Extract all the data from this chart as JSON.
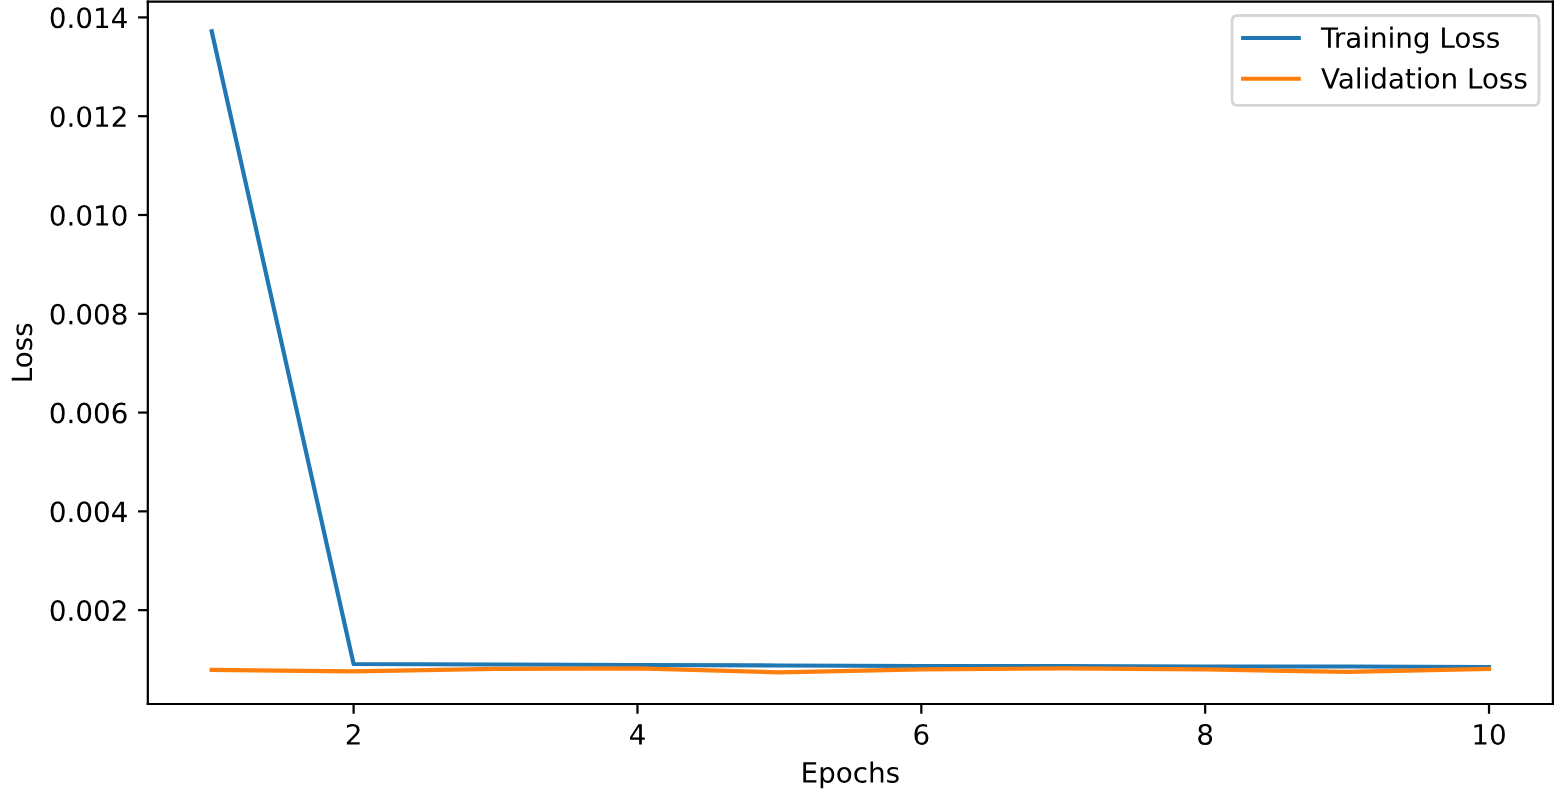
{
  "chart_data": {
    "type": "line",
    "xlabel": "Epochs",
    "ylabel": "Loss",
    "x": [
      1,
      2,
      3,
      4,
      5,
      6,
      7,
      8,
      9,
      10
    ],
    "series": [
      {
        "name": "Training Loss",
        "color": "#1f77b4",
        "values": [
          0.01372,
          0.00091,
          0.0009,
          0.00089,
          0.00088,
          0.00087,
          0.00087,
          0.00086,
          0.00086,
          0.00085
        ]
      },
      {
        "name": "Validation Loss",
        "color": "#ff7f0e",
        "values": [
          0.00079,
          0.00076,
          0.00081,
          0.00082,
          0.00074,
          0.0008,
          0.00082,
          0.0008,
          0.00075,
          0.00081
        ]
      }
    ],
    "xlim": [
      0.55,
      10.45
    ],
    "ylim": [
      0.0001,
      0.01432
    ],
    "xticks": [
      {
        "value": 2,
        "label": "2"
      },
      {
        "value": 4,
        "label": "4"
      },
      {
        "value": 6,
        "label": "6"
      },
      {
        "value": 8,
        "label": "8"
      },
      {
        "value": 10,
        "label": "10"
      }
    ],
    "yticks": [
      {
        "value": 0.002,
        "label": "0.002"
      },
      {
        "value": 0.004,
        "label": "0.004"
      },
      {
        "value": 0.006,
        "label": "0.006"
      },
      {
        "value": 0.008,
        "label": "0.008"
      },
      {
        "value": 0.01,
        "label": "0.010"
      },
      {
        "value": 0.012,
        "label": "0.012"
      },
      {
        "value": 0.014,
        "label": "0.014"
      }
    ],
    "legend": "top right",
    "grid": false
  }
}
